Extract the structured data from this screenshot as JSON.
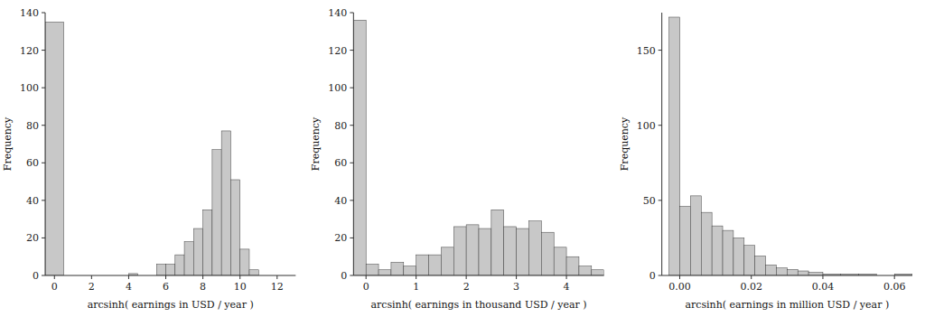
{
  "chart_data": [
    {
      "type": "histogram",
      "xlabel": "arcsinh( earnings in USD / year )",
      "ylabel": "Frequency",
      "color": "#c8c8c8",
      "xlim": [
        -0.5,
        13
      ],
      "ylim": [
        0,
        140
      ],
      "xticks": [
        0,
        2,
        4,
        6,
        8,
        10,
        12
      ],
      "yticks": [
        0,
        20,
        40,
        60,
        80,
        100,
        120,
        140
      ],
      "bins": [
        -0.5,
        0.5,
        1.0,
        1.5,
        2.0,
        2.5,
        3.0,
        3.5,
        4.0,
        4.5,
        5.0,
        5.5,
        6.0,
        6.5,
        7.0,
        7.5,
        8.0,
        8.5,
        9.0,
        9.5,
        10.0,
        10.5,
        11.0,
        11.5,
        12.0,
        12.5
      ],
      "values": [
        135,
        0,
        0,
        0,
        0,
        0,
        0,
        0,
        1,
        0,
        0,
        6,
        6,
        11,
        18,
        25,
        35,
        67,
        77,
        51,
        14,
        3,
        0,
        0,
        0
      ]
    },
    {
      "type": "histogram",
      "xlabel": "arcsinh( earnings in thousand USD / year )",
      "ylabel": "Frequency",
      "color": "#c8c8c8",
      "xlim": [
        -0.25,
        4.75
      ],
      "ylim": [
        0,
        140
      ],
      "xticks": [
        0,
        1,
        2,
        3,
        4
      ],
      "yticks": [
        0,
        20,
        40,
        60,
        80,
        100,
        120,
        140
      ],
      "bins": [
        -0.25,
        0.0,
        0.25,
        0.5,
        0.75,
        1.0,
        1.25,
        1.5,
        1.75,
        2.0,
        2.25,
        2.5,
        2.75,
        3.0,
        3.25,
        3.5,
        3.75,
        4.0,
        4.25,
        4.5,
        4.75
      ],
      "values": [
        136,
        6,
        3,
        7,
        5,
        11,
        11,
        15,
        26,
        27,
        25,
        35,
        26,
        25,
        29,
        23,
        15,
        10,
        5,
        3
      ]
    },
    {
      "type": "histogram",
      "xlabel": "arcsinh( earnings in million USD / year )",
      "ylabel": "Frequency",
      "color": "#c8c8c8",
      "xlim": [
        -0.005,
        0.065
      ],
      "ylim": [
        0,
        175
      ],
      "xticks": [
        {
          "value": 0,
          "label": "0.00"
        },
        0.02,
        0.04,
        0.06
      ],
      "yticks": [
        0,
        50,
        100,
        150
      ],
      "bins": [
        -0.003,
        0.0,
        0.003,
        0.006,
        0.009,
        0.012,
        0.015,
        0.018,
        0.021,
        0.024,
        0.027,
        0.03,
        0.033,
        0.036,
        0.04,
        0.045,
        0.05,
        0.055,
        0.06,
        0.065
      ],
      "values": [
        172,
        46,
        53,
        42,
        33,
        30,
        25,
        20,
        13,
        7,
        5,
        4,
        3,
        2,
        1,
        1,
        1,
        0,
        1
      ]
    }
  ]
}
